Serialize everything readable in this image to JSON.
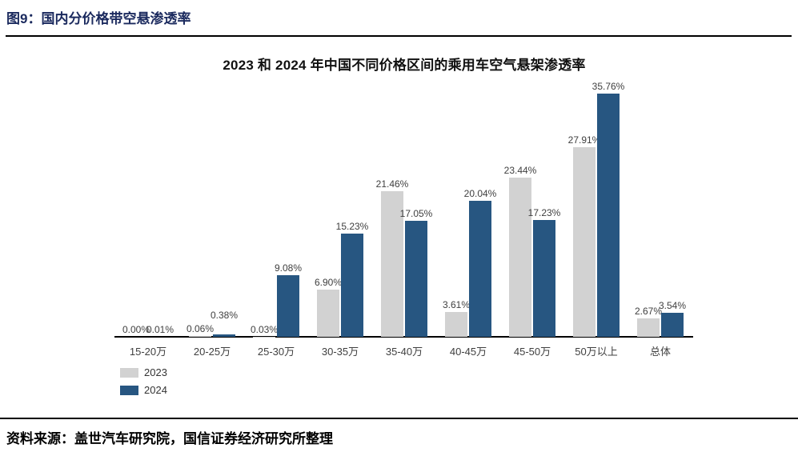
{
  "page": {
    "figure_label": "图9：国内分价格带空悬渗透率",
    "source_text": "资料来源：盖世汽车研究院，国信证券经济研究所整理"
  },
  "colors": {
    "figure_label_text": "#1b2a5e",
    "axis": "#000000",
    "data_label_text": "#3f3f3f"
  },
  "chart_data": {
    "type": "bar",
    "title": "2023 和 2024 年中国不同价格区间的乘用车空气悬架渗透率",
    "categories": [
      "15-20万",
      "20-25万",
      "25-30万",
      "30-35万",
      "35-40万",
      "40-45万",
      "45-50万",
      "50万以上",
      "总体"
    ],
    "series": [
      {
        "name": "2023",
        "color": "#d2d2d2",
        "values": [
          0.0,
          0.06,
          0.03,
          6.9,
          21.46,
          3.61,
          23.44,
          27.91,
          2.67
        ]
      },
      {
        "name": "2024",
        "color": "#275681",
        "values": [
          0.01,
          0.38,
          9.08,
          15.23,
          17.05,
          20.04,
          17.23,
          35.76,
          3.54
        ]
      }
    ],
    "value_suffix": "%",
    "value_decimals": 2,
    "ylim": [
      0,
      40
    ],
    "grid": false,
    "data_labels_visible": true,
    "legend_position": "bottom-left"
  }
}
